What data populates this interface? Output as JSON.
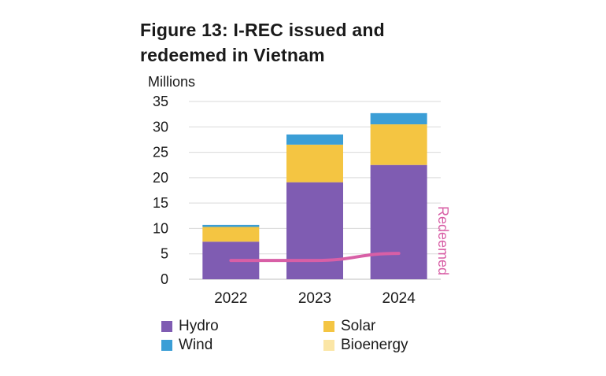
{
  "title_line1": "Figure 13: I-REC issued and",
  "title_line2": "redeemed in Vietnam",
  "chart_data": {
    "type": "bar",
    "stacked": true,
    "ylabel": "Millions",
    "ylim": [
      0,
      35
    ],
    "yticks": [
      "0",
      "5",
      "10",
      "15",
      "20",
      "25",
      "30",
      "35"
    ],
    "categories": [
      "2022",
      "2023",
      "2024"
    ],
    "series": [
      {
        "name": "Hydro",
        "color": "#7f5cb2",
        "values": [
          7.4,
          19.1,
          22.5
        ]
      },
      {
        "name": "Solar",
        "color": "#f4c542",
        "values": [
          2.9,
          7.4,
          8.0
        ]
      },
      {
        "name": "Wind",
        "color": "#3b9ed6",
        "values": [
          0.4,
          2.0,
          2.2
        ]
      },
      {
        "name": "Bioenergy",
        "color": "#fbe6a6",
        "values": [
          0,
          0,
          0
        ]
      }
    ],
    "line": {
      "name": "Redeemed",
      "color": "#d85fa6",
      "values": [
        3.7,
        3.7,
        5.1
      ]
    },
    "grid": true,
    "legend_position": "bottom"
  }
}
